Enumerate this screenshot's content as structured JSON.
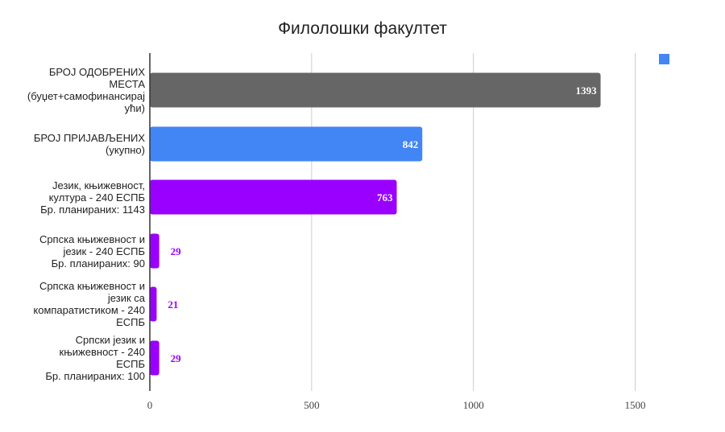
{
  "chart_data": {
    "type": "bar",
    "orientation": "horizontal",
    "title": "Филолошки факултет",
    "xlim": [
      0,
      1600
    ],
    "xticks": [
      "0",
      "500",
      "1000",
      "1500"
    ],
    "grid": true,
    "legend": {
      "placement": "top-right",
      "swatch_color": "#4285f4"
    },
    "categories": [
      "БРОЈ ОДОБРЕНИХ\nМЕСТА\n(буџет+самофинансирај\nући)",
      "БРОЈ ПРИЈАВЉЕНИХ\n(укупно)",
      "Језик, књижевност,\nкултура - 240  ЕСПБ\nБр. планираних: 1143",
      "Српска књижевност и\nјезик - 240  ЕСПБ\nБр. планираних: 90",
      "Српска књижевност и\nјезик са\nкомпаратистиком - 240\nЕСПБ",
      "Српски језик и\nкњижевност - 240\nЕСПБ\nБр. планираних: 100"
    ],
    "values": [
      1393,
      842,
      763,
      29,
      21,
      29
    ],
    "data_labels": [
      "1393",
      "842",
      "763",
      "29",
      "21",
      "29"
    ],
    "colors": [
      "#666666",
      "#4285f4",
      "#9900ff",
      "#9900ff",
      "#9900ff",
      "#9900ff"
    ]
  }
}
